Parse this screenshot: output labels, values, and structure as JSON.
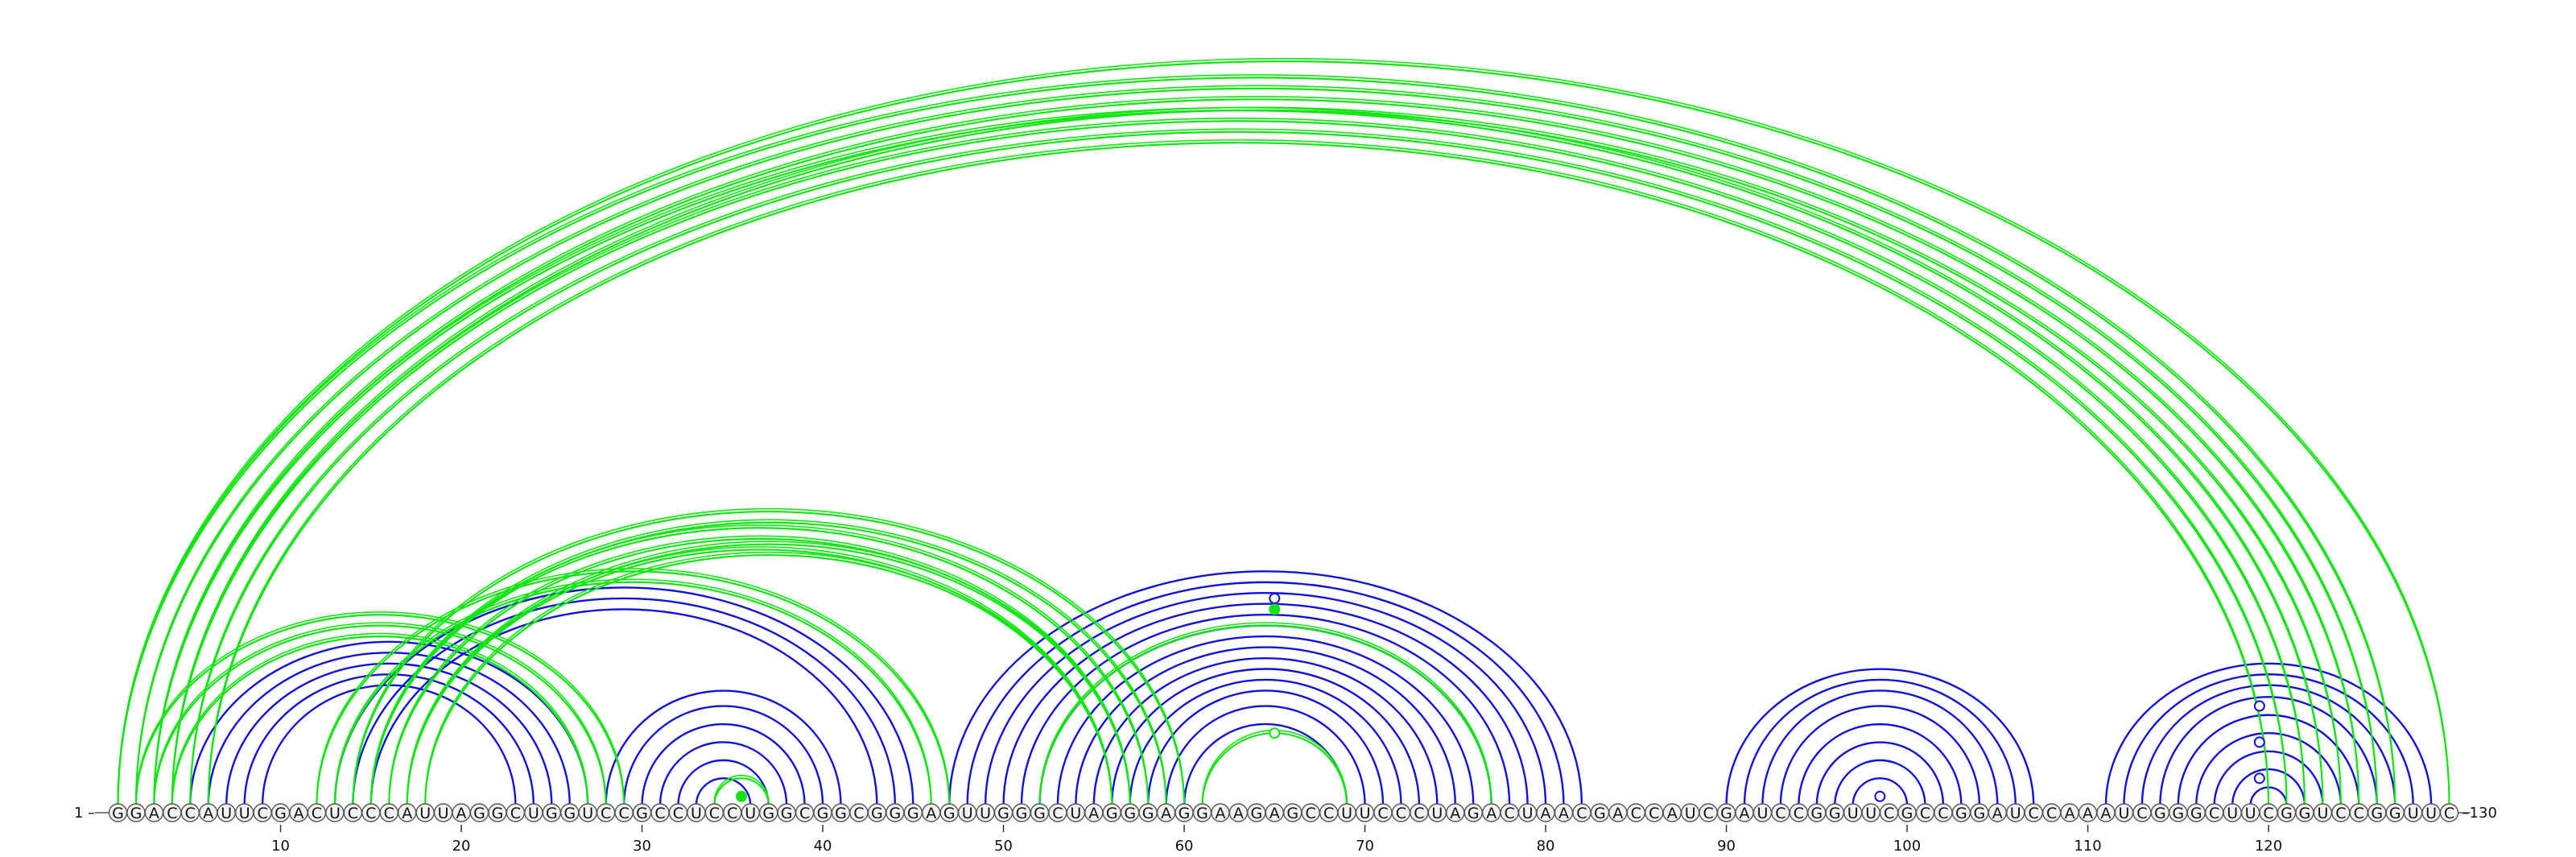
{
  "diagram": {
    "type": "rna-arc-diagram",
    "sequence": "GGACCAUUCGACUCCCAUUAGGCUGGUCCGCCUCCUGGCGGCGGGAGUUGGGCUAGGGAGGAAGAGCCUUCCCUAGACUAACGACCAUCGAUCCGGUUCGCCGGAUCCAAAUCGGGCUUCGGUCCGGUUC",
    "length": 130,
    "start_label": "1",
    "end_label": "130",
    "tick_labels": [
      "10",
      "20",
      "30",
      "40",
      "50",
      "60",
      "70",
      "80",
      "90",
      "100",
      "110",
      "120"
    ],
    "colors": {
      "blue": "#1010e0",
      "green": "#11e611",
      "circle_fill": "#f2f2f2",
      "circle_stroke": "#555555",
      "backbone": "#555555"
    },
    "blue_helices": [
      {
        "i": 5,
        "j": 27,
        "len": 5
      },
      {
        "i": 13,
        "j": 45,
        "len": 3
      },
      {
        "i": 28,
        "j": 41,
        "len": 6
      },
      {
        "i": 47,
        "j": 82,
        "len": 14
      },
      {
        "i": 90,
        "j": 107,
        "len": 8
      },
      {
        "i": 111,
        "j": 129,
        "len": 9
      }
    ],
    "green_helices": [
      {
        "i": 1,
        "j": 130,
        "len": 1
      },
      {
        "i": 1,
        "j": 127,
        "len": 4
      },
      {
        "i": 3,
        "j": 123,
        "len": 4
      },
      {
        "i": 2,
        "j": 29,
        "len": 3
      },
      {
        "i": 12,
        "j": 47,
        "len": 2
      },
      {
        "i": 15,
        "j": 58,
        "len": 3
      },
      {
        "i": 17,
        "j": 57,
        "len": 2
      },
      {
        "i": 14,
        "j": 60,
        "len": 2
      },
      {
        "i": 52,
        "j": 77,
        "len": 1
      },
      {
        "i": 61,
        "j": 69,
        "len": 1
      },
      {
        "i": 34,
        "j": 37,
        "len": 1
      }
    ],
    "markers": [
      {
        "i": 35,
        "j": 36,
        "color": "green",
        "filled": true
      },
      {
        "i": 61,
        "j": 69,
        "color": "green",
        "filled": false
      },
      {
        "i": 51,
        "j": 79,
        "color": "green",
        "filled": true
      },
      {
        "i": 50,
        "j": 80,
        "color": "blue",
        "filled": false
      },
      {
        "i": 98,
        "j": 99,
        "color": "blue",
        "filled": false
      },
      {
        "i": 118,
        "j": 121,
        "color": "blue",
        "filled": false
      },
      {
        "i": 116,
        "j": 123,
        "color": "blue",
        "filled": false
      },
      {
        "i": 114,
        "j": 125,
        "color": "blue",
        "filled": false
      }
    ]
  }
}
